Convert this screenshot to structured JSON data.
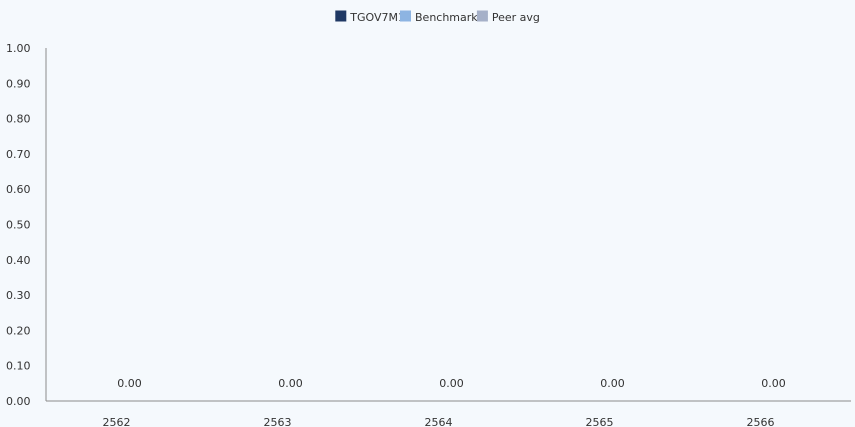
{
  "chart_data": {
    "type": "bar",
    "title": "",
    "xlabel": "",
    "ylabel": "",
    "categories": [
      "2562",
      "2563",
      "2564",
      "2565",
      "2566"
    ],
    "series": [
      {
        "name": "TGOV7M1",
        "color": "#1f3864",
        "values": [
          0.0,
          0.0,
          0.0,
          0.0,
          0.0
        ]
      },
      {
        "name": "Benchmark",
        "color": "#8db4e2",
        "values": [
          null,
          null,
          null,
          null,
          null
        ]
      },
      {
        "name": "Peer avg",
        "color": "#a5b0c8",
        "values": [
          null,
          null,
          null,
          null,
          null
        ]
      }
    ],
    "data_labels": [
      "0.00",
      "0.00",
      "0.00",
      "0.00",
      "0.00"
    ],
    "ylim": [
      0,
      1
    ],
    "y_ticks": [
      "0.00",
      "0.10",
      "0.20",
      "0.30",
      "0.40",
      "0.50",
      "0.60",
      "0.70",
      "0.80",
      "0.90",
      "1.00"
    ],
    "grid": false,
    "legend_position": "top-center"
  }
}
